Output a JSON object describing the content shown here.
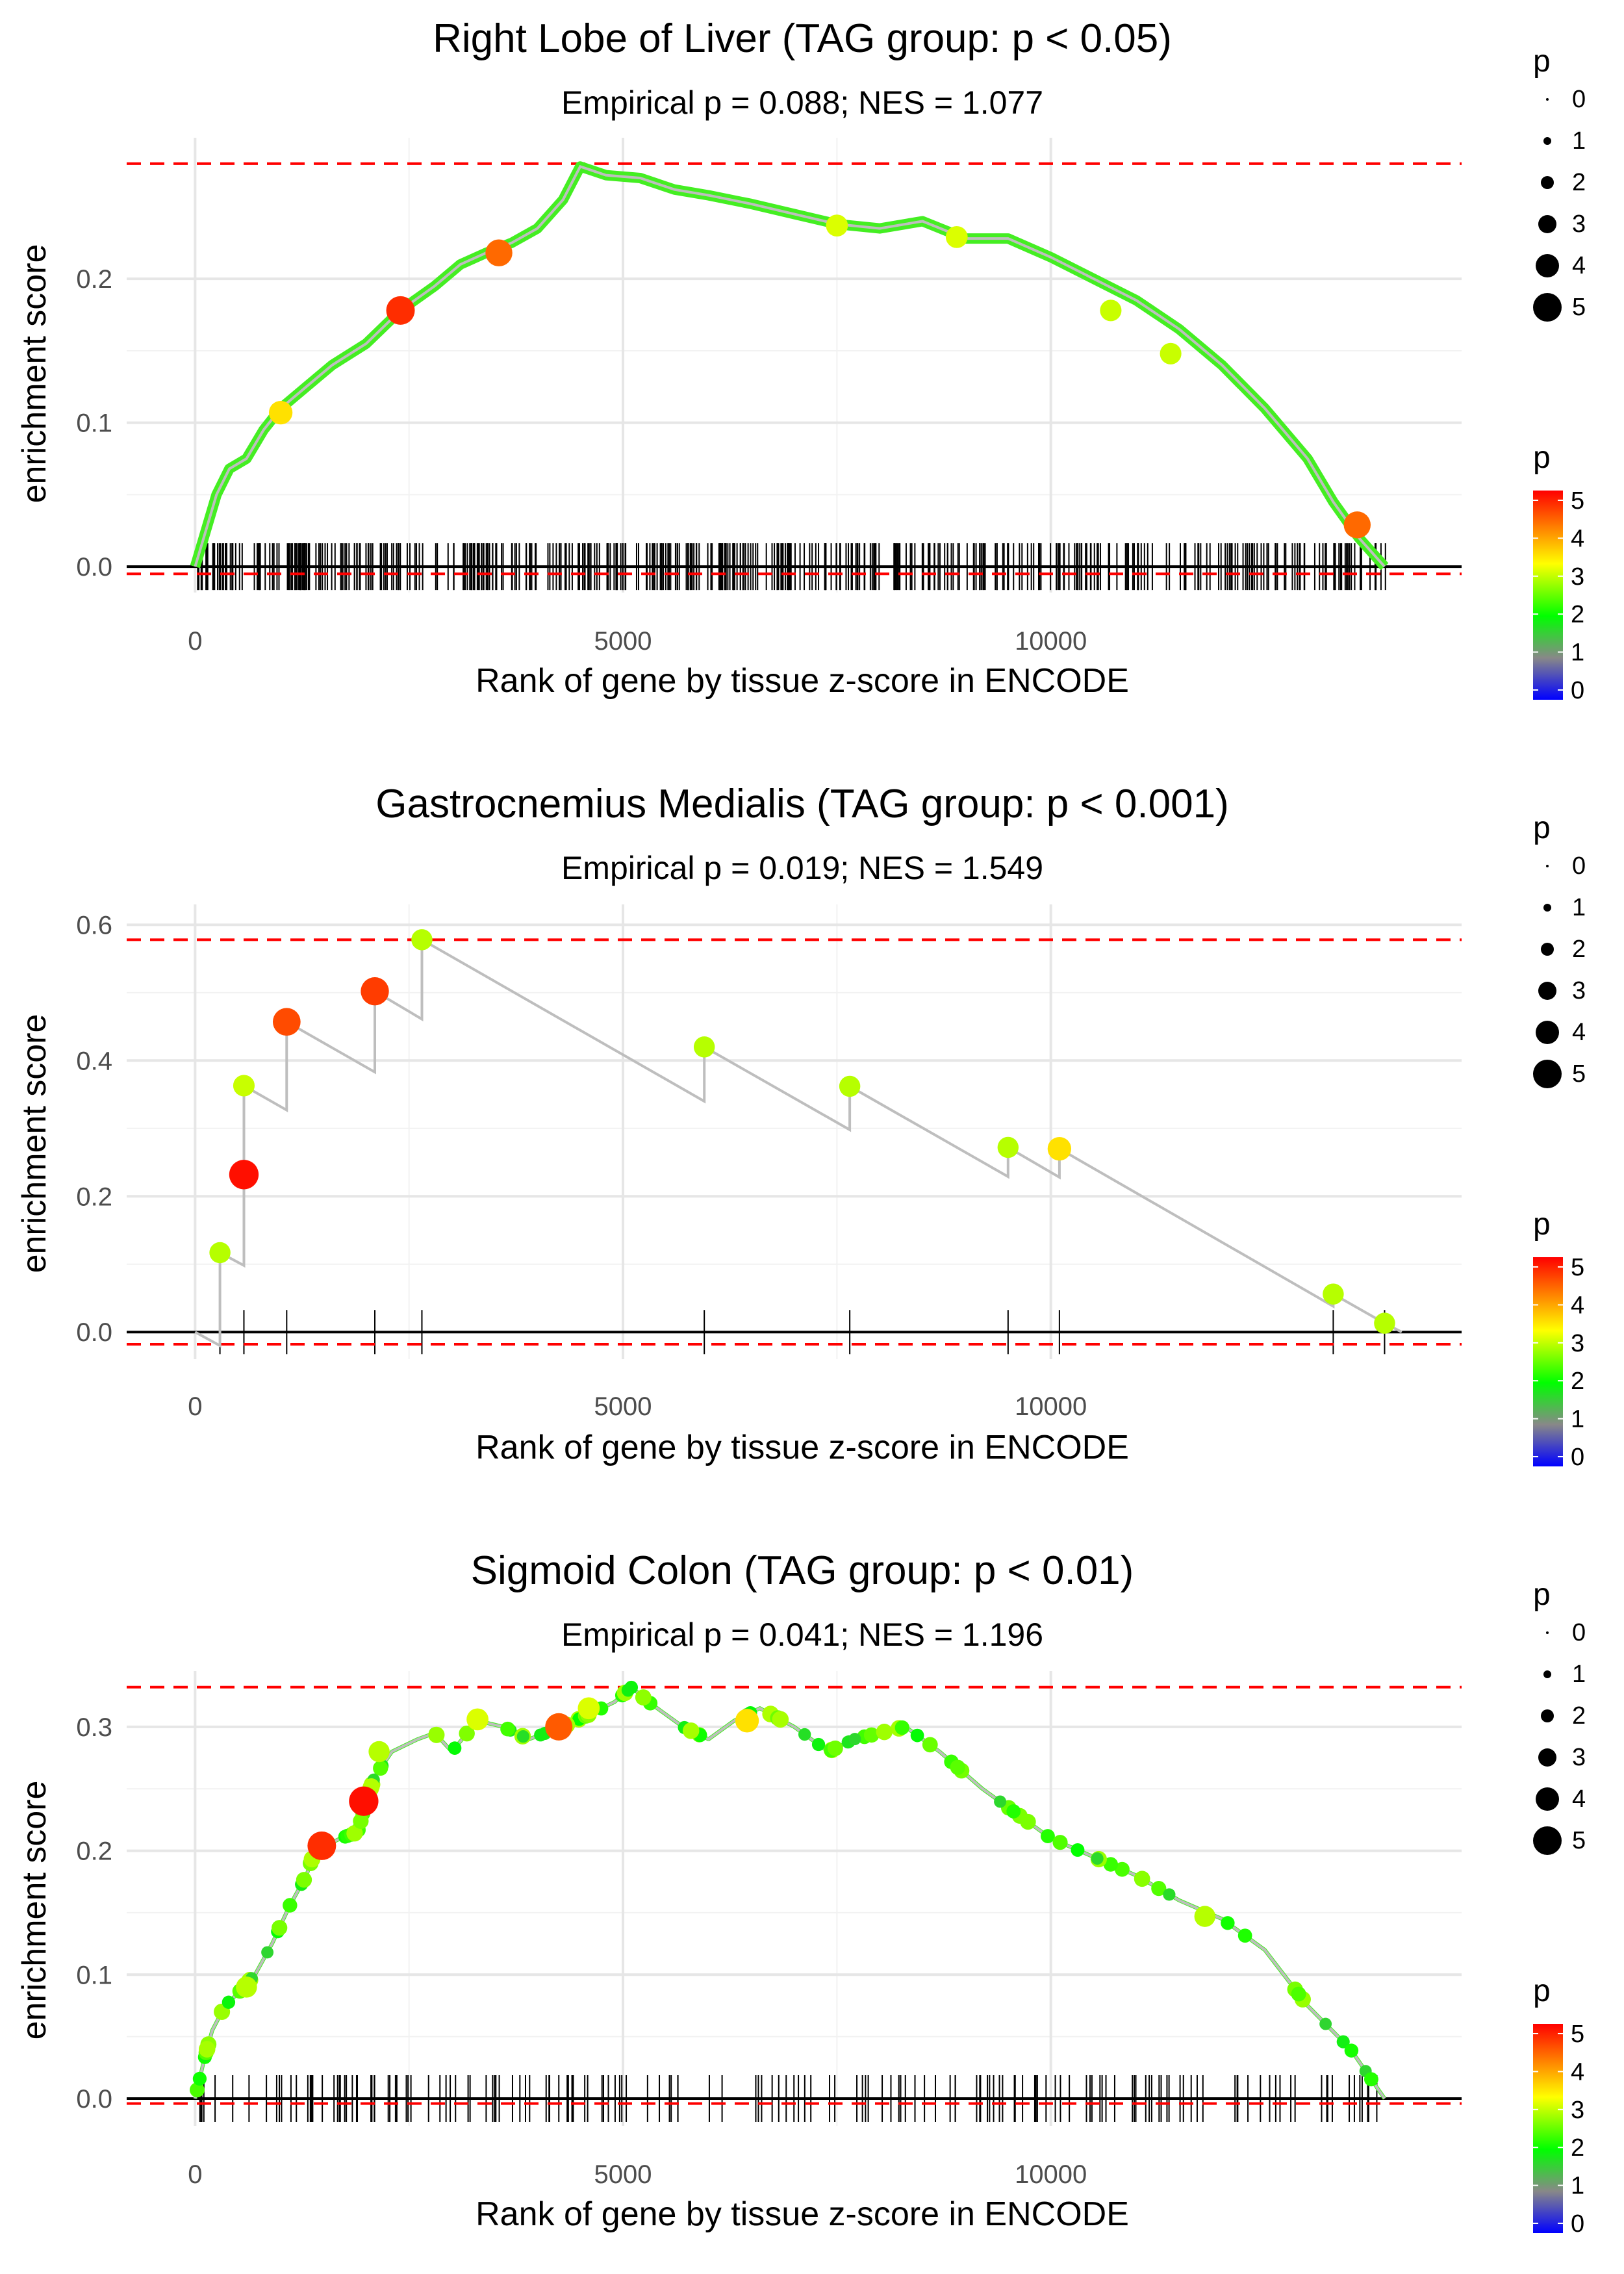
{
  "chart_data": [
    {
      "type": "line",
      "title": "Right Lobe of Liver (TAG group: p < 0.05)",
      "subtitle": "Empirical p = 0.088; NES = 1.077",
      "xlabel": "Rank of gene by tissue z-score in ENCODE",
      "ylabel": "enrichment score",
      "xlim": [
        -800,
        14800
      ],
      "ylim": [
        -0.018,
        0.298
      ],
      "xticks": [
        0,
        5000,
        10000
      ],
      "yticks": [
        0.0,
        0.1,
        0.2
      ],
      "xtick_labels": [
        "0",
        "5000",
        "10000"
      ],
      "ytick_labels": [
        "0.0",
        "0.1",
        "0.2"
      ],
      "max_es": 0.28,
      "min_es": -0.005,
      "gene_set_size": "dense",
      "curve": [
        [
          0,
          0
        ],
        [
          100,
          0.02
        ],
        [
          250,
          0.05
        ],
        [
          400,
          0.068
        ],
        [
          600,
          0.075
        ],
        [
          800,
          0.095
        ],
        [
          1000,
          0.11
        ],
        [
          1300,
          0.125
        ],
        [
          1600,
          0.14
        ],
        [
          2000,
          0.155
        ],
        [
          2400,
          0.178
        ],
        [
          2800,
          0.195
        ],
        [
          3100,
          0.21
        ],
        [
          3400,
          0.218
        ],
        [
          3700,
          0.225
        ],
        [
          4000,
          0.235
        ],
        [
          4300,
          0.255
        ],
        [
          4500,
          0.278
        ],
        [
          4600,
          0.276
        ],
        [
          4800,
          0.272
        ],
        [
          5200,
          0.27
        ],
        [
          5600,
          0.262
        ],
        [
          6000,
          0.258
        ],
        [
          6500,
          0.252
        ],
        [
          7000,
          0.245
        ],
        [
          7500,
          0.238
        ],
        [
          8000,
          0.235
        ],
        [
          8500,
          0.24
        ],
        [
          9000,
          0.228
        ],
        [
          9500,
          0.228
        ],
        [
          10000,
          0.215
        ],
        [
          10500,
          0.2
        ],
        [
          11000,
          0.185
        ],
        [
          11500,
          0.165
        ],
        [
          12000,
          0.14
        ],
        [
          12500,
          0.11
        ],
        [
          13000,
          0.075
        ],
        [
          13300,
          0.045
        ],
        [
          13600,
          0.02
        ],
        [
          13900,
          0
        ]
      ],
      "highlight_points": [
        {
          "x": 2400,
          "y": 0.178,
          "p": 5.0
        },
        {
          "x": 3550,
          "y": 0.218,
          "p": 4.6
        },
        {
          "x": 1000,
          "y": 0.107,
          "p": 3.8
        },
        {
          "x": 13580,
          "y": 0.029,
          "p": 4.6
        },
        {
          "x": 7500,
          "y": 0.237,
          "p": 3.4
        },
        {
          "x": 8900,
          "y": 0.229,
          "p": 3.4
        },
        {
          "x": 10700,
          "y": 0.178,
          "p": 3.3
        },
        {
          "x": 11400,
          "y": 0.148,
          "p": 3.3
        }
      ]
    },
    {
      "type": "line",
      "title": "Gastrocnemius Medialis (TAG group: p < 0.001)",
      "subtitle": "Empirical p = 0.019; NES = 1.549",
      "xlabel": "Rank of gene by tissue z-score in ENCODE",
      "ylabel": "enrichment score",
      "xlim": [
        -800,
        14800
      ],
      "ylim": [
        -0.04,
        0.63
      ],
      "xticks": [
        0,
        5000,
        10000
      ],
      "yticks": [
        0.0,
        0.2,
        0.4,
        0.6
      ],
      "xtick_labels": [
        "0",
        "5000",
        "10000"
      ],
      "ytick_labels": [
        "0.0",
        "0.2",
        "0.4",
        "0.6"
      ],
      "max_es": 0.578,
      "min_es": -0.018,
      "gene_ranks": [
        290,
        570,
        1070,
        2100,
        2650,
        5950,
        7650,
        9500,
        10100,
        13300,
        13900
      ],
      "curve": [
        [
          0,
          0
        ],
        [
          290,
          -0.02
        ],
        [
          290,
          0.117
        ],
        [
          570,
          0.098
        ],
        [
          570,
          0.232
        ],
        [
          570,
          0.363
        ],
        [
          1070,
          0.327
        ],
        [
          1070,
          0.457
        ],
        [
          2100,
          0.383
        ],
        [
          2100,
          0.502
        ],
        [
          2650,
          0.461
        ],
        [
          2650,
          0.578
        ],
        [
          5950,
          0.34
        ],
        [
          5950,
          0.42
        ],
        [
          7650,
          0.298
        ],
        [
          7650,
          0.362
        ],
        [
          9500,
          0.229
        ],
        [
          9500,
          0.272
        ],
        [
          10100,
          0.228
        ],
        [
          10100,
          0.27
        ],
        [
          13300,
          0.038
        ],
        [
          13300,
          0.056
        ],
        [
          13900,
          0.013
        ],
        [
          14100,
          0
        ]
      ],
      "highlight_points": [
        {
          "x": 290,
          "y": 0.117,
          "p": 3.2
        },
        {
          "x": 570,
          "y": 0.232,
          "p": 5.2
        },
        {
          "x": 570,
          "y": 0.363,
          "p": 3.3
        },
        {
          "x": 1070,
          "y": 0.457,
          "p": 4.8
        },
        {
          "x": 2100,
          "y": 0.502,
          "p": 4.9
        },
        {
          "x": 2650,
          "y": 0.578,
          "p": 3.2
        },
        {
          "x": 5950,
          "y": 0.42,
          "p": 3.2
        },
        {
          "x": 7650,
          "y": 0.362,
          "p": 3.2
        },
        {
          "x": 9500,
          "y": 0.272,
          "p": 3.2
        },
        {
          "x": 10100,
          "y": 0.27,
          "p": 3.8
        },
        {
          "x": 13300,
          "y": 0.056,
          "p": 3.2
        },
        {
          "x": 13900,
          "y": 0.013,
          "p": 3.2
        }
      ]
    },
    {
      "type": "line",
      "title": "Sigmoid Colon (TAG group: p < 0.01)",
      "subtitle": "Empirical p = 0.041; NES = 1.196",
      "xlabel": "Rank of gene by tissue z-score in ENCODE",
      "ylabel": "enrichment score",
      "xlim": [
        -800,
        14800
      ],
      "ylim": [
        -0.022,
        0.345
      ],
      "xticks": [
        0,
        5000,
        10000
      ],
      "yticks": [
        0.0,
        0.1,
        0.2,
        0.3
      ],
      "xtick_labels": [
        "0",
        "5000",
        "10000"
      ],
      "ytick_labels": [
        "0.0",
        "0.1",
        "0.2",
        "0.3"
      ],
      "max_es": 0.332,
      "min_es": -0.004,
      "gene_set_size": "medium",
      "curve": [
        [
          0,
          0
        ],
        [
          100,
          0.03
        ],
        [
          200,
          0.055
        ],
        [
          350,
          0.075
        ],
        [
          500,
          0.085
        ],
        [
          700,
          0.1
        ],
        [
          900,
          0.125
        ],
        [
          1100,
          0.155
        ],
        [
          1300,
          0.18
        ],
        [
          1400,
          0.2
        ],
        [
          1700,
          0.21
        ],
        [
          1900,
          0.215
        ],
        [
          2000,
          0.24
        ],
        [
          2100,
          0.26
        ],
        [
          2300,
          0.28
        ],
        [
          2600,
          0.29
        ],
        [
          2800,
          0.295
        ],
        [
          3000,
          0.28
        ],
        [
          3300,
          0.305
        ],
        [
          3600,
          0.3
        ],
        [
          3900,
          0.29
        ],
        [
          4300,
          0.3
        ],
        [
          4600,
          0.31
        ],
        [
          4900,
          0.32
        ],
        [
          5100,
          0.332
        ],
        [
          5300,
          0.32
        ],
        [
          5700,
          0.3
        ],
        [
          6000,
          0.29
        ],
        [
          6300,
          0.305
        ],
        [
          6600,
          0.315
        ],
        [
          7000,
          0.3
        ],
        [
          7400,
          0.28
        ],
        [
          7700,
          0.29
        ],
        [
          8000,
          0.295
        ],
        [
          8300,
          0.3
        ],
        [
          8700,
          0.28
        ],
        [
          9200,
          0.25
        ],
        [
          9700,
          0.225
        ],
        [
          10000,
          0.21
        ],
        [
          10500,
          0.195
        ],
        [
          11000,
          0.18
        ],
        [
          11500,
          0.16
        ],
        [
          12000,
          0.145
        ],
        [
          12500,
          0.12
        ],
        [
          13000,
          0.075
        ],
        [
          13500,
          0.04
        ],
        [
          13900,
          0
        ]
      ],
      "highlight_points": [
        {
          "x": 1480,
          "y": 0.204,
          "p": 5.0
        },
        {
          "x": 1970,
          "y": 0.24,
          "p": 5.2
        },
        {
          "x": 4250,
          "y": 0.3,
          "p": 4.7
        },
        {
          "x": 3300,
          "y": 0.306,
          "p": 3.4
        },
        {
          "x": 4600,
          "y": 0.315,
          "p": 3.4
        },
        {
          "x": 6450,
          "y": 0.305,
          "p": 3.8
        },
        {
          "x": 2150,
          "y": 0.28,
          "p": 3.2
        },
        {
          "x": 600,
          "y": 0.09,
          "p": 3.2
        },
        {
          "x": 11800,
          "y": 0.147,
          "p": 3.2
        }
      ]
    }
  ],
  "legends": {
    "size_title": "p",
    "size_labels": [
      "0",
      "1",
      "2",
      "3",
      "4",
      "5"
    ],
    "color_title": "p",
    "color_labels": [
      "5",
      "4",
      "3",
      "2",
      "1",
      "0"
    ],
    "colors": [
      "#0000ff",
      "#888888",
      "#00ff00",
      "#ffff00",
      "#ff0000"
    ]
  }
}
